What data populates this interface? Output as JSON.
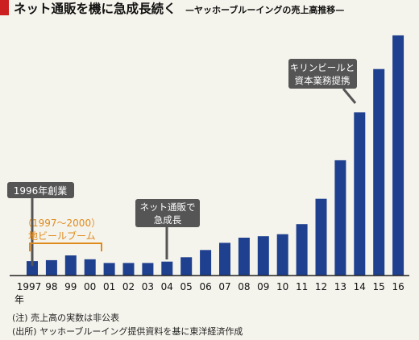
{
  "colors": {
    "background": "#f5f4ec",
    "bar": "#1f3f8f",
    "marker": "#cc1f1f",
    "callout_bg": "#555555",
    "callout_text": "#ffffff",
    "highlight": "#e08a1e",
    "axis": "#222222"
  },
  "header": {
    "title": "ネット通販を機に急成長続く",
    "subtitle": "—ヤッホーブルーイングの売上高推移—"
  },
  "chart_data": {
    "type": "bar",
    "title": "ネット通販を機に急成長続く",
    "subtitle": "—ヤッホーブルーイングの売上高推移—",
    "categories": [
      "1997",
      "98",
      "99",
      "00",
      "01",
      "02",
      "03",
      "04",
      "05",
      "06",
      "07",
      "08",
      "09",
      "10",
      "11",
      "12",
      "13",
      "14",
      "15",
      "16"
    ],
    "x_unit_label": "年",
    "values": [
      10,
      10.7,
      14,
      11.3,
      8.7,
      8.7,
      8.7,
      9.7,
      12.7,
      17.7,
      22.7,
      26.3,
      27.3,
      28.7,
      35.7,
      53.3,
      80,
      113.3,
      143.3,
      166.7
    ],
    "value_unit": "relative (actual figures undisclosed)",
    "ylim": [
      0,
      170
    ],
    "y_axis_shown": false,
    "grid": false,
    "legend": "none",
    "annotations": [
      {
        "text": "1996年創業",
        "style": "callout",
        "target": "1997"
      },
      {
        "text": "（1997〜2000）",
        "style": "highlight",
        "target": "1997-2000"
      },
      {
        "text": "地ビールブーム",
        "style": "highlight",
        "target": "1997-2000"
      },
      {
        "text": "ネット通販で",
        "style": "callout",
        "target": "04"
      },
      {
        "text": "急成長",
        "style": "callout",
        "target": "04"
      },
      {
        "text": "キリンビールと",
        "style": "callout",
        "target": "14"
      },
      {
        "text": "資本業務提携",
        "style": "callout",
        "target": "14"
      }
    ]
  },
  "notes": {
    "note1": "(注) 売上高の実数は非公表",
    "note2": "(出所) ヤッホーブルーイング提供資料を基に東洋経済作成"
  }
}
